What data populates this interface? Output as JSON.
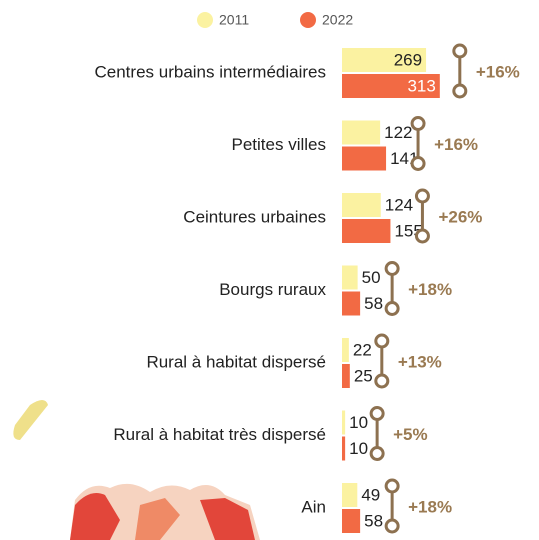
{
  "chart_data": {
    "type": "bar",
    "categories": [
      "Centres urbains intermédiaires",
      "Petites villes",
      "Ceintures urbaines",
      "Bourgs ruraux",
      "Rural à habitat dispersé",
      "Rural à habitat très dispersé",
      "Ain"
    ],
    "series": [
      {
        "name": "2011",
        "color": "#fbf2a1",
        "values": [
          269,
          122,
          124,
          50,
          22,
          10,
          49
        ]
      },
      {
        "name": "2022",
        "color": "#f26a44",
        "values": [
          313,
          141,
          155,
          58,
          25,
          10,
          58
        ]
      }
    ],
    "changes": [
      "+16%",
      "+16%",
      "+26%",
      "+18%",
      "+13%",
      "+5%",
      "+18%"
    ],
    "xlim": [
      0,
      320
    ]
  }
}
